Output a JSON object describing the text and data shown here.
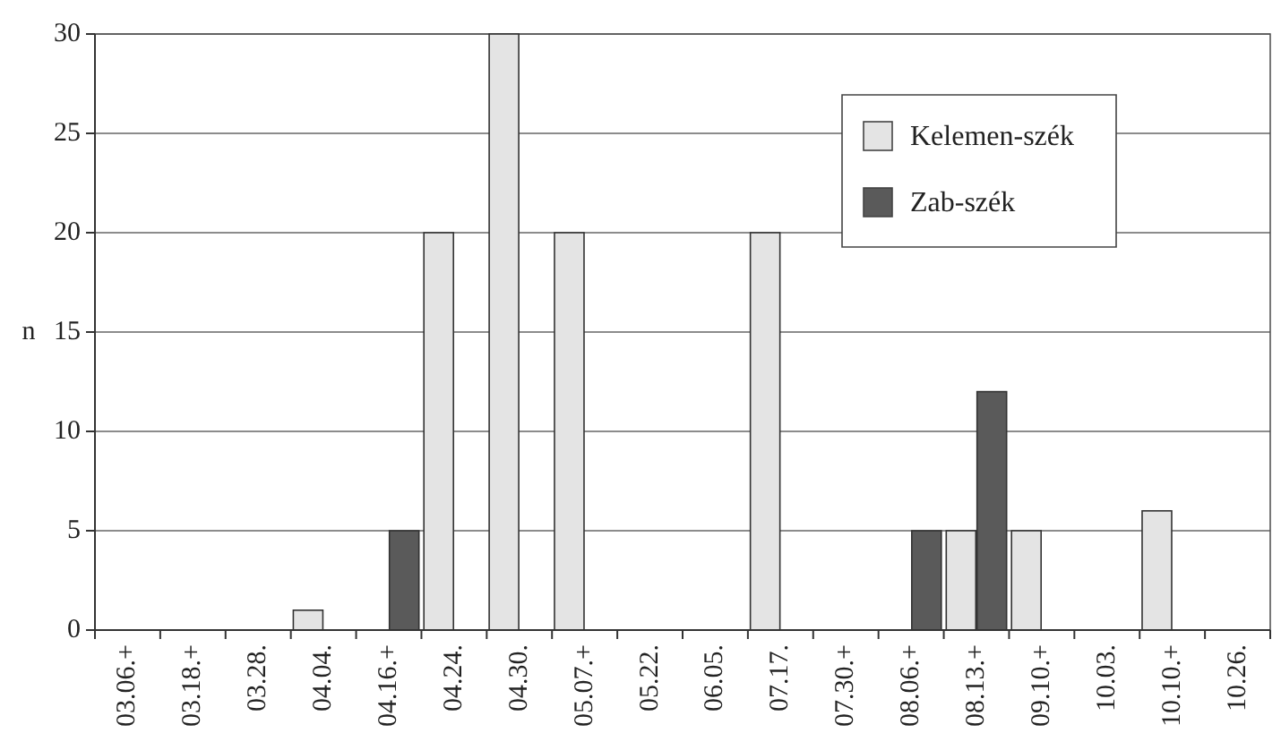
{
  "chart_data": {
    "type": "bar",
    "categories": [
      "03.06.+",
      "03.18.+",
      "03.28.",
      "04.04.",
      "04.16.+",
      "04.24.",
      "04.30.",
      "05.07.+",
      "05.22.",
      "06.05.",
      "07.17.",
      "07.30.+",
      "08.06.+",
      "08.13.+",
      "09.10.+",
      "10.03.",
      "10.10.+",
      "10.26."
    ],
    "series": [
      {
        "name": "Kelemen-szék",
        "color": "#e4e4e4",
        "values": [
          0,
          0,
          0,
          1,
          0,
          20,
          30,
          20,
          0,
          0,
          20,
          0,
          0,
          5,
          5,
          0,
          6,
          0
        ]
      },
      {
        "name": "Zab-szék",
        "color": "#5a5a5a",
        "values": [
          0,
          0,
          null,
          null,
          5,
          null,
          null,
          0,
          null,
          null,
          null,
          0,
          5,
          12,
          0,
          null,
          0,
          null
        ]
      }
    ],
    "ylabel": "n",
    "ylim": [
      0,
      30
    ],
    "yticks": [
      0,
      5,
      10,
      15,
      20,
      25,
      30
    ],
    "grid": "y",
    "legend": "top right"
  }
}
